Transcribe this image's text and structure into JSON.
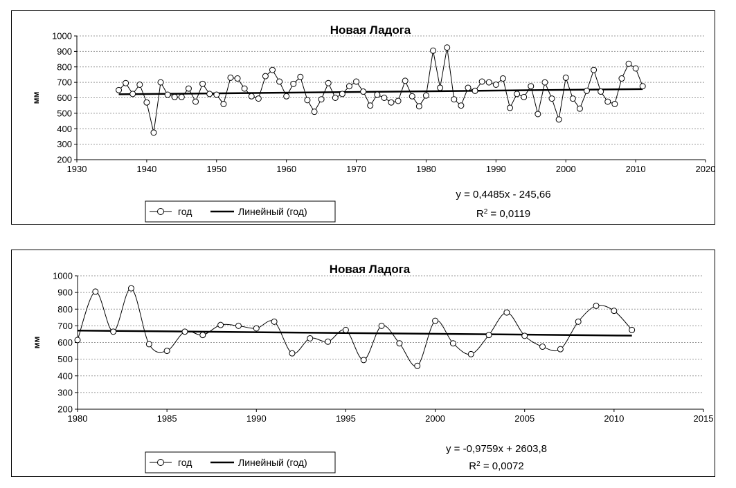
{
  "colors": {
    "line": "#000000",
    "grid": "#999999",
    "marker_fill": "#ffffff"
  },
  "chart_data": [
    {
      "type": "line",
      "title": "Новая Ладога",
      "ylabel": "мм",
      "xlabel": "",
      "xlim": [
        1930,
        2020
      ],
      "ylim": [
        200,
        1000
      ],
      "x_ticks": [
        1930,
        1940,
        1950,
        1960,
        1970,
        1980,
        1990,
        2000,
        2010,
        2020
      ],
      "y_ticks": [
        200,
        300,
        400,
        500,
        600,
        700,
        800,
        900,
        1000
      ],
      "grid": true,
      "series": [
        {
          "name": "год",
          "x": [
            1936,
            1937,
            1938,
            1939,
            1940,
            1941,
            1942,
            1943,
            1944,
            1945,
            1946,
            1947,
            1948,
            1949,
            1950,
            1951,
            1952,
            1953,
            1954,
            1955,
            1956,
            1957,
            1958,
            1959,
            1960,
            1961,
            1962,
            1963,
            1964,
            1965,
            1966,
            1967,
            1968,
            1969,
            1970,
            1971,
            1972,
            1973,
            1974,
            1975,
            1976,
            1977,
            1978,
            1979,
            1980,
            1981,
            1982,
            1983,
            1984,
            1985,
            1986,
            1987,
            1988,
            1989,
            1990,
            1991,
            1992,
            1993,
            1994,
            1995,
            1996,
            1997,
            1998,
            1999,
            2000,
            2001,
            2002,
            2003,
            2004,
            2005,
            2006,
            2007,
            2008,
            2009,
            2010,
            2011
          ],
          "values": [
            650,
            695,
            625,
            685,
            570,
            375,
            700,
            620,
            605,
            605,
            660,
            575,
            690,
            625,
            620,
            560,
            730,
            725,
            660,
            610,
            595,
            740,
            780,
            705,
            610,
            690,
            735,
            585,
            510,
            590,
            695,
            600,
            625,
            675,
            705,
            640,
            550,
            620,
            600,
            570,
            580,
            710,
            610,
            545,
            615,
            905,
            665,
            925,
            590,
            550,
            665,
            645,
            705,
            700,
            685,
            725,
            535,
            625,
            605,
            675,
            495,
            700,
            595,
            460,
            730,
            595,
            530,
            645,
            780,
            640,
            575,
            560,
            725,
            820,
            790,
            675
          ]
        },
        {
          "name": "Линейный (год)",
          "type": "trend",
          "slope": 0.4485,
          "intercept": -245.66,
          "x_range": [
            1936,
            2011
          ]
        }
      ],
      "equation": "y = 0,4485x - 245,66",
      "r2_prefix": "R",
      "r2_sup": "2",
      "r2_value": " = 0,0119",
      "legend": [
        "год",
        "Линейный (год)"
      ],
      "legend_position": "bottom-left"
    },
    {
      "type": "line",
      "title": "Новая Ладога",
      "ylabel": "мм",
      "xlabel": "",
      "xlim": [
        1980,
        2015
      ],
      "ylim": [
        200,
        1000
      ],
      "x_ticks": [
        1980,
        1985,
        1990,
        1995,
        2000,
        2005,
        2010,
        2015
      ],
      "y_ticks": [
        200,
        300,
        400,
        500,
        600,
        700,
        800,
        900,
        1000
      ],
      "grid": true,
      "smooth": true,
      "series": [
        {
          "name": "год",
          "x": [
            1980,
            1981,
            1982,
            1983,
            1984,
            1985,
            1986,
            1987,
            1988,
            1989,
            1990,
            1991,
            1992,
            1993,
            1994,
            1995,
            1996,
            1997,
            1998,
            1999,
            2000,
            2001,
            2002,
            2003,
            2004,
            2005,
            2006,
            2007,
            2008,
            2009,
            2010,
            2011
          ],
          "values": [
            615,
            905,
            665,
            925,
            590,
            550,
            665,
            645,
            705,
            700,
            685,
            725,
            535,
            625,
            605,
            675,
            495,
            700,
            595,
            460,
            730,
            595,
            530,
            645,
            780,
            640,
            575,
            560,
            725,
            820,
            790,
            675
          ]
        },
        {
          "name": "Линейный (год)",
          "type": "trend",
          "slope": -0.9759,
          "intercept": 2603.8,
          "x_range": [
            1980,
            2011
          ]
        }
      ],
      "equation": "y = -0,9759x + 2603,8",
      "r2_prefix": "R",
      "r2_sup": "2",
      "r2_value": " = 0,0072",
      "legend": [
        "год",
        "Линейный (год)"
      ],
      "legend_position": "bottom-left"
    }
  ]
}
